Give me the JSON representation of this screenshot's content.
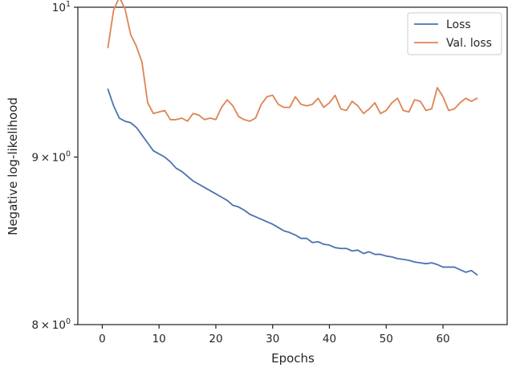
{
  "chart_data": {
    "type": "line",
    "title": "",
    "xlabel": "Epochs",
    "ylabel": "Negative log-likelihood",
    "y_scale": "log",
    "xlim": [
      -4.3,
      71.3
    ],
    "ylim": [
      8.0,
      10.0
    ],
    "x_ticks": [
      0,
      10,
      20,
      30,
      40,
      50,
      60
    ],
    "y_ticks": [
      {
        "value": 8.0,
        "base": "8",
        "exp": "0"
      },
      {
        "value": 9.0,
        "base": "9",
        "exp": "0"
      },
      {
        "value": 10.0,
        "base": "10",
        "exp": "1"
      }
    ],
    "grid": false,
    "legend_position": "top-right",
    "x": [
      1,
      2,
      3,
      4,
      5,
      6,
      7,
      8,
      9,
      10,
      11,
      12,
      13,
      14,
      15,
      16,
      17,
      18,
      19,
      20,
      21,
      22,
      23,
      24,
      25,
      26,
      27,
      28,
      29,
      30,
      31,
      32,
      33,
      34,
      35,
      36,
      37,
      38,
      39,
      40,
      41,
      42,
      43,
      44,
      45,
      46,
      47,
      48,
      49,
      50,
      51,
      52,
      53,
      54,
      55,
      56,
      57,
      58,
      59,
      60,
      61,
      62,
      63,
      64,
      65,
      66
    ],
    "series": [
      {
        "name": "Loss",
        "color": "#4c72b0",
        "values": [
          9.44,
          9.33,
          9.25,
          9.23,
          9.22,
          9.19,
          9.14,
          9.09,
          9.04,
          9.02,
          9.0,
          8.97,
          8.93,
          8.91,
          8.88,
          8.85,
          8.83,
          8.81,
          8.79,
          8.77,
          8.75,
          8.73,
          8.7,
          8.69,
          8.67,
          8.645,
          8.63,
          8.615,
          8.6,
          8.585,
          8.565,
          8.545,
          8.535,
          8.52,
          8.5,
          8.5,
          8.475,
          8.48,
          8.465,
          8.46,
          8.445,
          8.44,
          8.44,
          8.425,
          8.43,
          8.41,
          8.42,
          8.405,
          8.405,
          8.395,
          8.39,
          8.38,
          8.375,
          8.37,
          8.36,
          8.355,
          8.35,
          8.355,
          8.345,
          8.33,
          8.33,
          8.33,
          8.315,
          8.3,
          8.31,
          8.285
        ]
      },
      {
        "name": "Val. loss",
        "color": "#dd8452",
        "values": [
          9.72,
          9.98,
          10.07,
          9.99,
          9.81,
          9.73,
          9.62,
          9.35,
          9.28,
          9.29,
          9.3,
          9.24,
          9.24,
          9.25,
          9.23,
          9.28,
          9.27,
          9.24,
          9.25,
          9.24,
          9.32,
          9.37,
          9.33,
          9.26,
          9.24,
          9.23,
          9.25,
          9.34,
          9.39,
          9.4,
          9.34,
          9.32,
          9.32,
          9.39,
          9.34,
          9.33,
          9.34,
          9.38,
          9.32,
          9.35,
          9.4,
          9.31,
          9.3,
          9.36,
          9.33,
          9.28,
          9.31,
          9.35,
          9.28,
          9.3,
          9.35,
          9.38,
          9.3,
          9.29,
          9.37,
          9.36,
          9.3,
          9.31,
          9.45,
          9.39,
          9.3,
          9.31,
          9.35,
          9.38,
          9.36,
          9.38
        ]
      }
    ]
  }
}
